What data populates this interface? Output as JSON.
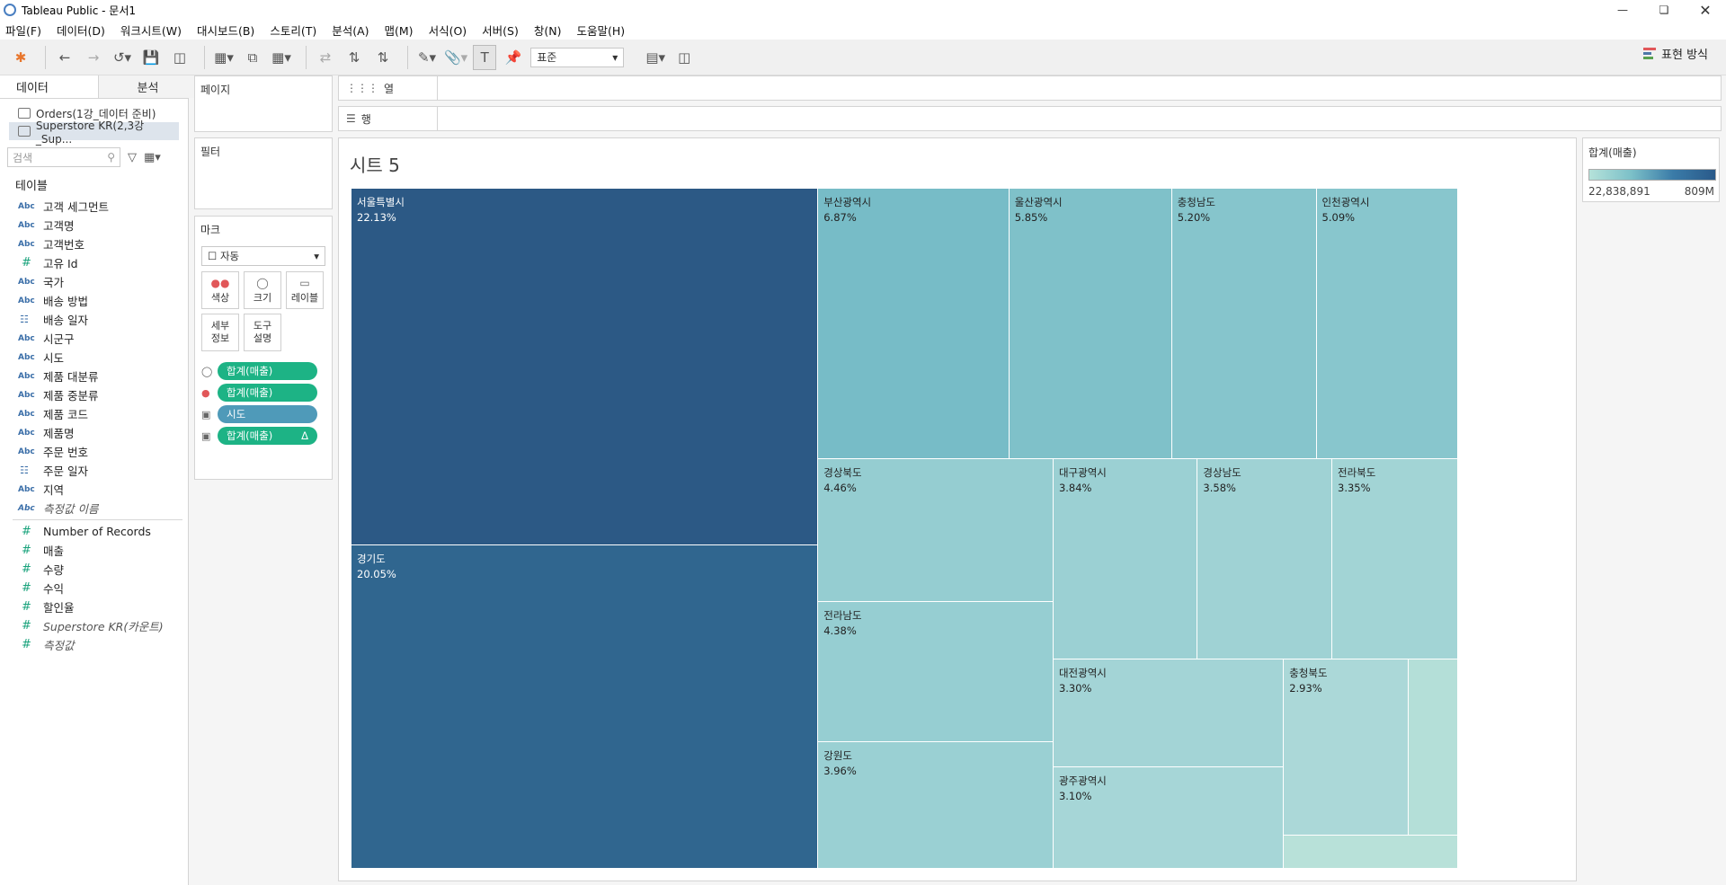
{
  "window": {
    "title": "Tableau Public - 문서1"
  },
  "menu": [
    "파일(F)",
    "데이터(D)",
    "워크시트(W)",
    "대시보드(B)",
    "스토리(T)",
    "분석(A)",
    "맵(M)",
    "서식(O)",
    "서버(S)",
    "창(N)",
    "도움말(H)"
  ],
  "toolbar": {
    "format_select": "표준",
    "show_me": "표현 방식"
  },
  "data_pane": {
    "tab_data": "데이터",
    "tab_analysis": "분석",
    "sources": [
      "Orders(1강_데이터 준비)",
      "Superstore KR(2,3강_Sup..."
    ],
    "search_placeholder": "검색",
    "tables_header": "테이블",
    "dimensions": [
      {
        "type": "Abc",
        "name": "고객 세그먼트"
      },
      {
        "type": "Abc",
        "name": "고객명"
      },
      {
        "type": "Abc",
        "name": "고객번호"
      },
      {
        "type": "#",
        "name": "고유 Id"
      },
      {
        "type": "Abc",
        "name": "국가"
      },
      {
        "type": "Abc",
        "name": "배송 방법"
      },
      {
        "type": "cal",
        "name": "배송 일자"
      },
      {
        "type": "Abc",
        "name": "시군구"
      },
      {
        "type": "Abc",
        "name": "시도"
      },
      {
        "type": "Abc",
        "name": "제품 대분류"
      },
      {
        "type": "Abc",
        "name": "제품 중분류"
      },
      {
        "type": "Abc",
        "name": "제품 코드"
      },
      {
        "type": "Abc",
        "name": "제품명"
      },
      {
        "type": "Abc",
        "name": "주문 번호"
      },
      {
        "type": "cal",
        "name": "주문 일자"
      },
      {
        "type": "Abc",
        "name": "지역"
      },
      {
        "type": "Abc",
        "name": "측정값 이름"
      }
    ],
    "measures": [
      {
        "type": "#",
        "name": "Number of Records"
      },
      {
        "type": "#",
        "name": "매출"
      },
      {
        "type": "#",
        "name": "수량"
      },
      {
        "type": "#",
        "name": "수익"
      },
      {
        "type": "#",
        "name": "할인율"
      },
      {
        "type": "#",
        "name": "Superstore KR(카운트)"
      },
      {
        "type": "#",
        "name": "측정값"
      }
    ]
  },
  "shelves": {
    "pages": "페이지",
    "filters": "필터",
    "marks": "마크",
    "columns": "열",
    "rows": "행",
    "mark_type": "자동",
    "mark_buttons": [
      "색상",
      "크기",
      "레이블",
      "세부\n정보",
      "도구\n설명"
    ],
    "pills": [
      {
        "icon": "size",
        "label": "합계(매출)",
        "kind": "measure"
      },
      {
        "icon": "color",
        "label": "합계(매출)",
        "kind": "measure"
      },
      {
        "icon": "label",
        "label": "시도",
        "kind": "dimension"
      },
      {
        "icon": "label",
        "label": "합계(매출)",
        "kind": "measure",
        "delta": "Δ"
      }
    ]
  },
  "sheet": {
    "title": "시트 5"
  },
  "legend": {
    "title": "합계(매출)",
    "min": "22,838,891",
    "max": "809M"
  },
  "chart_data": {
    "type": "treemap",
    "categories": [
      "서울특별시",
      "경기도",
      "부산광역시",
      "울산광역시",
      "충청남도",
      "인천광역시",
      "경상북도",
      "전라남도",
      "강원도",
      "대구광역시",
      "경상남도",
      "전라북도",
      "대전광역시",
      "광주광역시",
      "충청북도",
      "",
      ""
    ],
    "values": [
      22.13,
      20.05,
      6.87,
      5.85,
      5.2,
      5.09,
      4.46,
      4.38,
      3.96,
      3.84,
      3.58,
      3.35,
      3.3,
      3.1,
      2.93,
      1.15,
      0.76
    ],
    "labels": [
      "22.13%",
      "20.05%",
      "6.87%",
      "5.85%",
      "5.20%",
      "5.09%",
      "4.46%",
      "4.38%",
      "3.96%",
      "3.84%",
      "3.58%",
      "3.35%",
      "3.30%",
      "3.10%",
      "2.93%",
      "",
      ""
    ],
    "colors": [
      "#2c5985",
      "#30668f",
      "#77bcc7",
      "#7fc1c9",
      "#86c5cc",
      "#88c6cd",
      "#95cdd1",
      "#96ced2",
      "#9ad0d3",
      "#9bd0d3",
      "#9fd2d4",
      "#a2d4d5",
      "#a3d4d6",
      "#a6d6d7",
      "#abd8d8",
      "#b4dfd8",
      "#b8e1d9"
    ]
  }
}
